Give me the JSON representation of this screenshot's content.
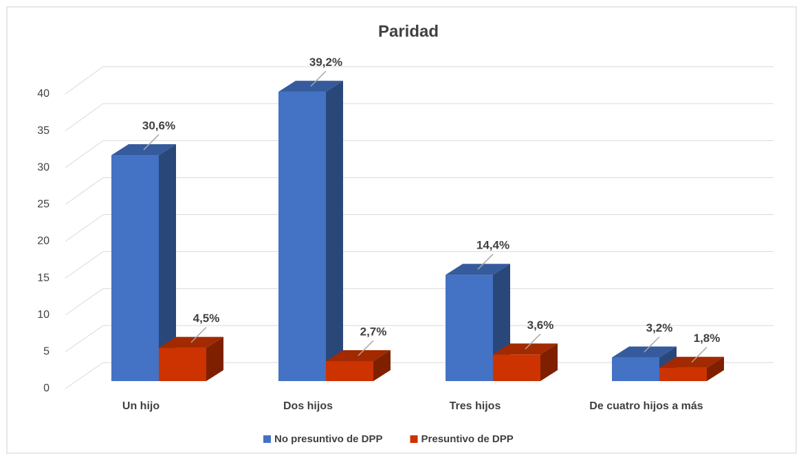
{
  "chart_data": {
    "type": "bar3d",
    "title": "Paridad",
    "categories": [
      "Un hijo",
      "Dos hijos",
      "Tres hijos",
      "De cuatro hijos a más"
    ],
    "series": [
      {
        "name": "No presuntivo de DPP",
        "color": "#4472c4",
        "values": [
          30.6,
          39.2,
          14.4,
          3.2
        ],
        "value_labels": [
          "30,6%",
          "39,2%",
          "14,4%",
          "3,2%"
        ]
      },
      {
        "name": "Presuntivo de DPP",
        "color": "#cc3300",
        "values": [
          4.5,
          2.7,
          3.6,
          1.8
        ],
        "value_labels": [
          "4,5%",
          "2,7%",
          "3,6%",
          "1,8%"
        ]
      }
    ],
    "ylim": [
      0,
      40
    ],
    "yticks": [
      0,
      5,
      10,
      15,
      20,
      25,
      30,
      35,
      40
    ],
    "grid": true,
    "legend": "bottom"
  }
}
